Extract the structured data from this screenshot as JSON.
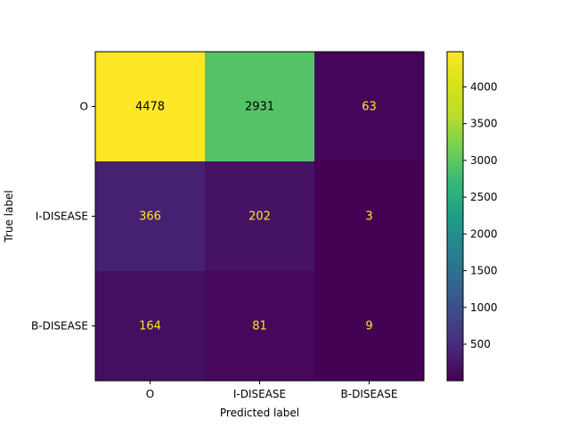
{
  "chart_data": {
    "type": "heatmap",
    "title": "",
    "xlabel": "Predicted label",
    "ylabel": "True label",
    "x_categories": [
      "O",
      "I-DISEASE",
      "B-DISEASE"
    ],
    "y_categories": [
      "O",
      "I-DISEASE",
      "B-DISEASE"
    ],
    "matrix": [
      [
        4478,
        2931,
        63
      ],
      [
        366,
        202,
        3
      ],
      [
        164,
        81,
        9
      ]
    ],
    "colormap": "viridis",
    "colorbar": {
      "min": 3,
      "max": 4478,
      "ticks": [
        500,
        1000,
        1500,
        2000,
        2500,
        3000,
        3500,
        4000
      ]
    },
    "text_color_light": "#fde725",
    "text_color_dark": "#000000",
    "grid": false
  }
}
